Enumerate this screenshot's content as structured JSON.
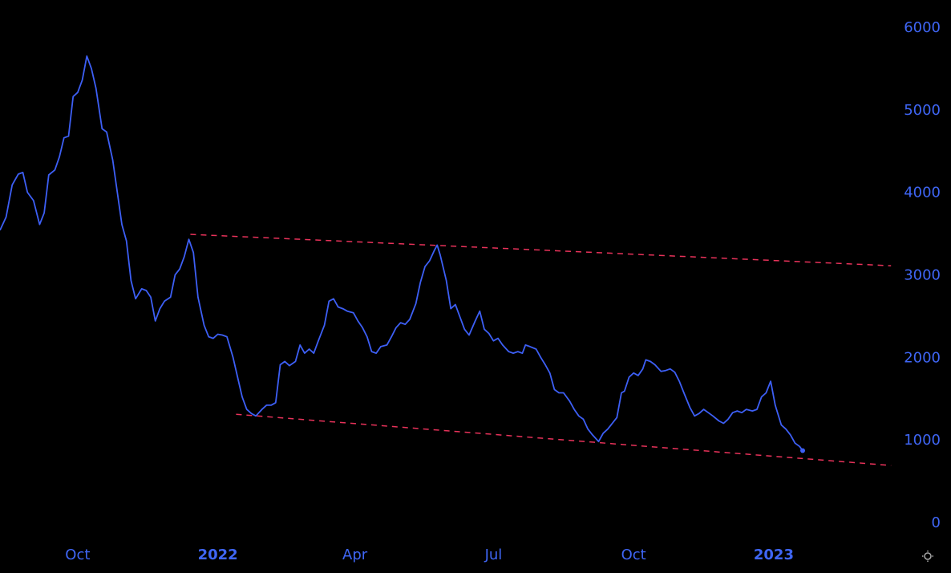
{
  "chart_data": {
    "type": "line",
    "x": [
      -51,
      -47,
      -43,
      -39,
      -36,
      -33,
      -29,
      -25,
      -22,
      -19,
      -15,
      -12,
      -9,
      -6,
      -3,
      0,
      3,
      6,
      9,
      12,
      16,
      19,
      23,
      26,
      29,
      32,
      35,
      38,
      42,
      45,
      48,
      51,
      54,
      57,
      61,
      64,
      67,
      70,
      73,
      76,
      79,
      83,
      86,
      89,
      92,
      95,
      98,
      102,
      105,
      108,
      111,
      114,
      117,
      121,
      124,
      127,
      130,
      133,
      136,
      139,
      143,
      146,
      149,
      152,
      155,
      158,
      162,
      165,
      168,
      171,
      174,
      177,
      181,
      184,
      187,
      190,
      193,
      196,
      199,
      203,
      206,
      209,
      212,
      215,
      218,
      222,
      225,
      228,
      231,
      234,
      236,
      238,
      242,
      245,
      248,
      251,
      254,
      257,
      261,
      264,
      267,
      270,
      273,
      276,
      279,
      283,
      286,
      289,
      292,
      294,
      297,
      301,
      304,
      307,
      310,
      313,
      316,
      319,
      323,
      326,
      329,
      332,
      335,
      338,
      342,
      345,
      348,
      351,
      354,
      357,
      359,
      362,
      365,
      368,
      371,
      373,
      376,
      379,
      383,
      386,
      389,
      392,
      395,
      398,
      402,
      405,
      408,
      411,
      414,
      417,
      421,
      424,
      427,
      430,
      433,
      436,
      439,
      443,
      446,
      449,
      452,
      455,
      458,
      462,
      465,
      468,
      471,
      474,
      476
    ],
    "series": [
      {
        "color": "#3d5ff5",
        "values": [
          3550,
          3710,
          4100,
          4230,
          4250,
          4010,
          3910,
          3620,
          3760,
          4220,
          4280,
          4440,
          4670,
          4690,
          5170,
          5220,
          5370,
          5660,
          5510,
          5270,
          4780,
          4740,
          4400,
          4010,
          3620,
          3420,
          2940,
          2720,
          2840,
          2820,
          2740,
          2450,
          2600,
          2690,
          2740,
          3010,
          3080,
          3230,
          3440,
          3280,
          2740,
          2400,
          2260,
          2240,
          2290,
          2280,
          2260,
          2010,
          1770,
          1530,
          1380,
          1330,
          1300,
          1380,
          1430,
          1430,
          1460,
          1920,
          1960,
          1910,
          1960,
          2160,
          2060,
          2110,
          2060,
          2210,
          2400,
          2690,
          2720,
          2620,
          2600,
          2570,
          2550,
          2450,
          2370,
          2260,
          2080,
          2060,
          2140,
          2160,
          2260,
          2370,
          2430,
          2410,
          2470,
          2660,
          2920,
          3110,
          3180,
          3300,
          3370,
          3250,
          2940,
          2600,
          2650,
          2500,
          2350,
          2280,
          2450,
          2570,
          2350,
          2300,
          2210,
          2240,
          2160,
          2080,
          2060,
          2080,
          2060,
          2160,
          2140,
          2110,
          2010,
          1920,
          1820,
          1620,
          1580,
          1580,
          1480,
          1380,
          1300,
          1260,
          1140,
          1070,
          990,
          1090,
          1140,
          1210,
          1280,
          1580,
          1600,
          1770,
          1820,
          1790,
          1870,
          1980,
          1960,
          1920,
          1840,
          1850,
          1870,
          1830,
          1720,
          1580,
          1400,
          1300,
          1330,
          1380,
          1340,
          1300,
          1240,
          1210,
          1260,
          1340,
          1360,
          1340,
          1380,
          1360,
          1380,
          1530,
          1580,
          1720,
          1430,
          1190,
          1140,
          1070,
          970,
          930,
          880
        ]
      }
    ],
    "trendlines": [
      {
        "color": "#e8325a",
        "x": [
          74,
          534
        ],
        "y": [
          3500,
          3120
        ]
      },
      {
        "color": "#e8325a",
        "x": [
          104,
          534
        ],
        "y": [
          1320,
          700
        ]
      }
    ],
    "xlim": [
      -51,
      536
    ],
    "xticks": [
      {
        "value": 0,
        "label": "Oct"
      },
      {
        "value": 92,
        "label": "2022"
      },
      {
        "value": 182,
        "label": "Apr"
      },
      {
        "value": 273,
        "label": "Jul"
      },
      {
        "value": 365,
        "label": "Oct"
      },
      {
        "value": 457,
        "label": "2023"
      }
    ],
    "ylim": [
      -220,
      6340
    ],
    "yticks": [
      0,
      1000,
      2000,
      3000,
      4000,
      5000,
      6000
    ],
    "y_axis_side": "right"
  }
}
